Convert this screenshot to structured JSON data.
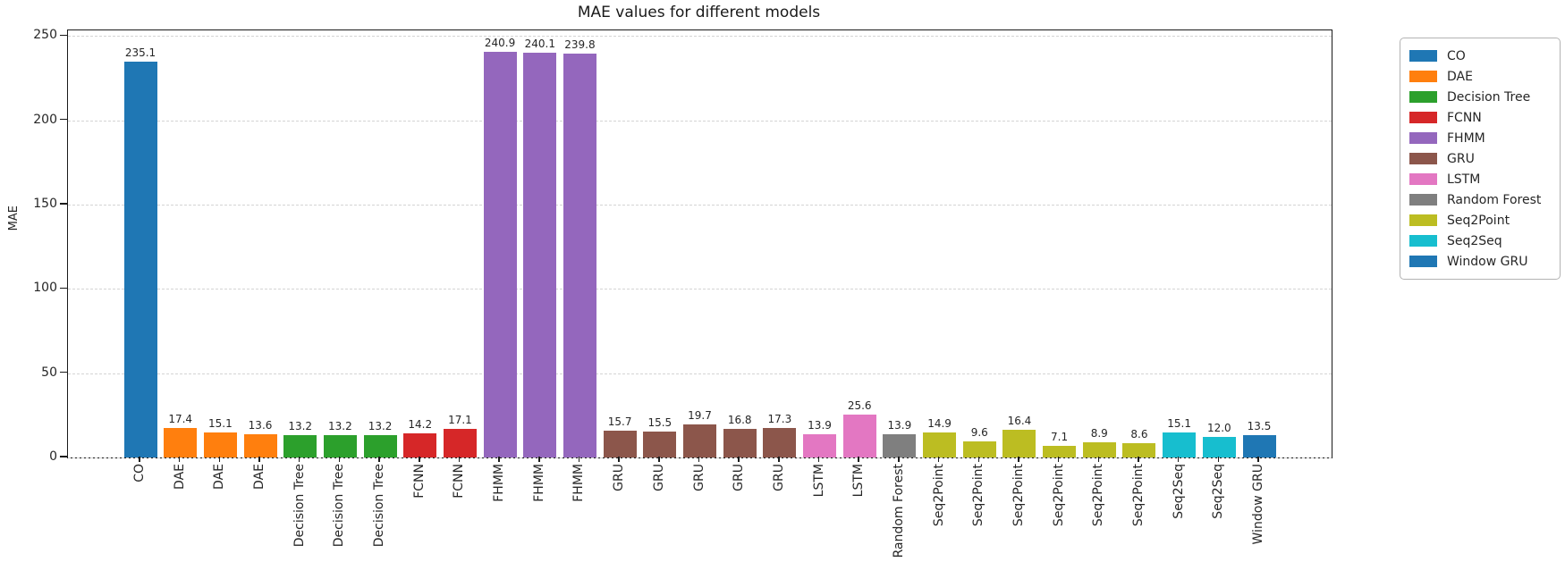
{
  "chart_data": {
    "type": "bar",
    "title": "MAE values for different models",
    "xlabel": "",
    "ylabel": "MAE",
    "ylim": [
      0,
      253.4
    ],
    "yticks": [
      0,
      50,
      100,
      150,
      200,
      250
    ],
    "grid": {
      "axis": "y",
      "style": "dashed",
      "color": "#d4d4d4"
    },
    "legend_position": "outside-right",
    "bar_label_decimals": 1,
    "colors": {
      "CO": "#1f77b4",
      "DAE": "#ff7f0e",
      "Decision Tree": "#2ca02c",
      "FCNN": "#d62728",
      "FHMM": "#9467bd",
      "GRU": "#8c564b",
      "LSTM": "#e377c2",
      "Random Forest": "#7f7f7f",
      "Seq2Point": "#bcbd22",
      "Seq2Seq": "#17becf",
      "Window GRU": "#1f77b4"
    },
    "legend_entries": [
      "CO",
      "DAE",
      "Decision Tree",
      "FCNN",
      "FHMM",
      "GRU",
      "LSTM",
      "Random Forest",
      "Seq2Point",
      "Seq2Seq",
      "Window GRU"
    ],
    "bars": [
      {
        "category": "CO",
        "value": 235.1
      },
      {
        "category": "DAE",
        "value": 17.4
      },
      {
        "category": "DAE",
        "value": 15.1
      },
      {
        "category": "DAE",
        "value": 13.6
      },
      {
        "category": "Decision Tree",
        "value": 13.2
      },
      {
        "category": "Decision Tree",
        "value": 13.2
      },
      {
        "category": "Decision Tree",
        "value": 13.2
      },
      {
        "category": "FCNN",
        "value": 14.2
      },
      {
        "category": "FCNN",
        "value": 17.1
      },
      {
        "category": "FHMM",
        "value": 240.9
      },
      {
        "category": "FHMM",
        "value": 240.1
      },
      {
        "category": "FHMM",
        "value": 239.8
      },
      {
        "category": "GRU",
        "value": 15.7
      },
      {
        "category": "GRU",
        "value": 15.5
      },
      {
        "category": "GRU",
        "value": 19.7
      },
      {
        "category": "GRU",
        "value": 16.8
      },
      {
        "category": "GRU",
        "value": 17.3
      },
      {
        "category": "LSTM",
        "value": 13.9
      },
      {
        "category": "LSTM",
        "value": 25.6
      },
      {
        "category": "Random Forest",
        "value": 13.9
      },
      {
        "category": "Seq2Point",
        "value": 14.9
      },
      {
        "category": "Seq2Point",
        "value": 9.6
      },
      {
        "category": "Seq2Point",
        "value": 16.4
      },
      {
        "category": "Seq2Point",
        "value": 7.1
      },
      {
        "category": "Seq2Point",
        "value": 8.9
      },
      {
        "category": "Seq2Point",
        "value": 8.6
      },
      {
        "category": "Seq2Seq",
        "value": 15.1
      },
      {
        "category": "Seq2Seq",
        "value": 12.0
      },
      {
        "category": "Window GRU",
        "value": 13.5
      }
    ]
  }
}
